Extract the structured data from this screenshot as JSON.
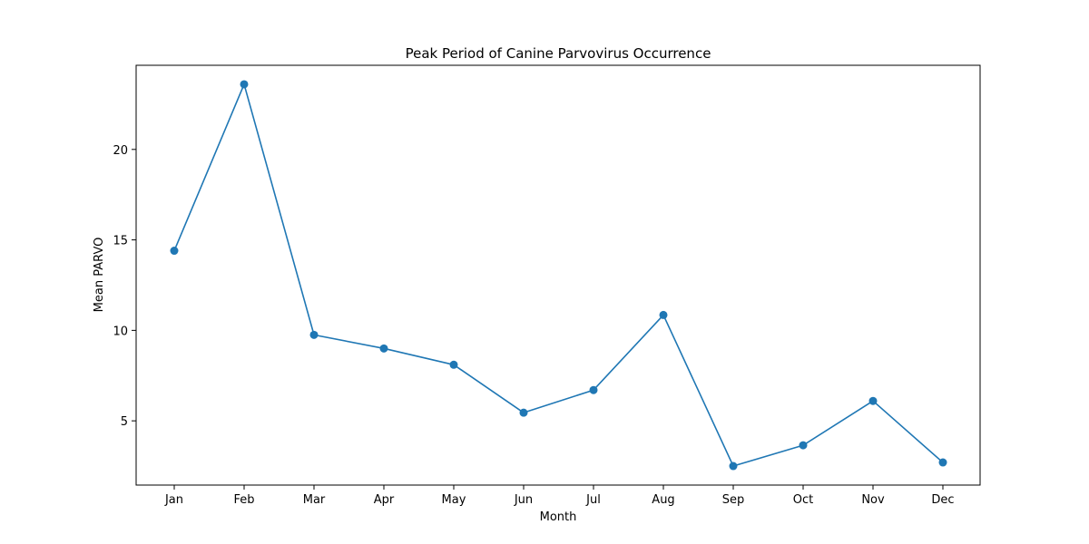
{
  "chart_data": {
    "type": "line",
    "title": "Peak Period of Canine Parvovirus Occurrence",
    "xlabel": "Month",
    "ylabel": "Mean PARVO",
    "categories": [
      "Jan",
      "Feb",
      "Mar",
      "Apr",
      "May",
      "Jun",
      "Jul",
      "Aug",
      "Sep",
      "Oct",
      "Nov",
      "Dec"
    ],
    "series": [
      {
        "values": [
          14.4,
          23.6,
          9.75,
          9.0,
          8.1,
          5.45,
          6.7,
          10.85,
          2.5,
          3.65,
          6.1,
          2.7
        ],
        "color": "#1f77b4",
        "marker": "circle"
      }
    ],
    "ylim": [
      1.45,
      24.65
    ],
    "yticks": [
      5,
      10,
      15,
      20
    ],
    "grid": false,
    "legend": "none"
  }
}
